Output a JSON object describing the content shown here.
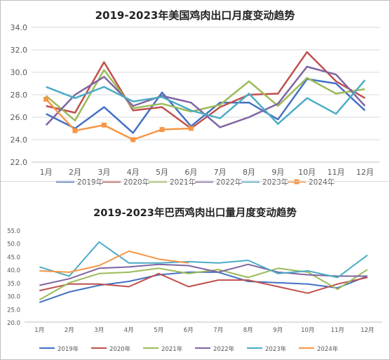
{
  "chart_data": [
    {
      "type": "line",
      "title": "2019-2023年美国鸡肉出口月度变动趋势",
      "categories": [
        "1月",
        "2月",
        "3月",
        "4月",
        "5月",
        "6月",
        "7月",
        "8月",
        "9月",
        "10月",
        "11月",
        "12月"
      ],
      "y_tick_labels": [
        "22.0",
        "24.0",
        "26.0",
        "28.0",
        "30.0",
        "32.0",
        "34.0"
      ],
      "ylim": [
        22,
        34
      ],
      "grid": true,
      "legend_position": "bottom",
      "series": [
        {
          "name": "2019年",
          "color": "#4472c4",
          "marker": "none",
          "values": [
            26.3,
            25.0,
            26.9,
            24.6,
            28.2,
            25.2,
            27.3,
            27.3,
            25.8,
            29.4,
            29.0,
            26.6
          ]
        },
        {
          "name": "2020年",
          "color": "#c0504d",
          "marker": "none",
          "values": [
            27.0,
            26.4,
            30.9,
            26.6,
            26.9,
            25.0,
            26.9,
            28.0,
            28.1,
            31.8,
            29.2,
            27.7
          ]
        },
        {
          "name": "2021年",
          "color": "#9bbb59",
          "marker": "none",
          "values": [
            27.9,
            25.7,
            30.2,
            26.8,
            27.2,
            26.5,
            27.1,
            29.2,
            27.0,
            29.5,
            28.1,
            28.5
          ]
        },
        {
          "name": "2022年",
          "color": "#8064a2",
          "marker": "none",
          "values": [
            25.3,
            28.0,
            29.6,
            27.0,
            27.9,
            27.3,
            25.1,
            26.0,
            27.2,
            30.5,
            29.8,
            27.0
          ]
        },
        {
          "name": "2023年",
          "color": "#4bacc6",
          "marker": "none",
          "values": [
            28.7,
            27.7,
            28.7,
            27.4,
            27.8,
            26.6,
            25.9,
            28.1,
            25.4,
            27.7,
            26.3,
            29.3
          ]
        },
        {
          "name": "2024年",
          "color": "#f79646",
          "marker": "square",
          "values": [
            27.6,
            24.8,
            25.3,
            24.0,
            24.9,
            25.0,
            null,
            null,
            null,
            null,
            null,
            null
          ]
        }
      ]
    },
    {
      "type": "line",
      "title": "2019-2023年巴西鸡肉出口量月度变动趋势",
      "categories": [
        "1月",
        "2月",
        "3月",
        "4月",
        "5月",
        "6月",
        "7月",
        "8月",
        "9月",
        "10月",
        "11月",
        "12月"
      ],
      "y_tick_labels": [
        "20.0",
        "25.0",
        "30.0",
        "35.0",
        "40.0",
        "45.0",
        "50.0",
        "55.0"
      ],
      "ylim": [
        20,
        55
      ],
      "grid": false,
      "legend_position": "bottom",
      "series": [
        {
          "name": "2019年",
          "color": "#4472c4",
          "values": [
            27.5,
            31.5,
            34.0,
            35.5,
            38.0,
            39.0,
            39.0,
            35.5,
            35.0,
            34.5,
            33.0,
            37.5
          ]
        },
        {
          "name": "2020年",
          "color": "#c0504d",
          "values": [
            32.0,
            34.5,
            34.5,
            33.5,
            38.5,
            33.5,
            36.0,
            36.0,
            33.5,
            31.0,
            34.5,
            37.0
          ]
        },
        {
          "name": "2021年",
          "color": "#9bbb59",
          "values": [
            28.5,
            35.0,
            38.5,
            39.0,
            40.5,
            38.5,
            40.0,
            37.0,
            40.5,
            39.0,
            32.5,
            40.0
          ]
        },
        {
          "name": "2022年",
          "color": "#8064a2",
          "values": [
            34.0,
            36.5,
            40.5,
            41.0,
            42.0,
            41.5,
            39.0,
            42.0,
            39.0,
            38.0,
            37.5,
            37.5
          ]
        },
        {
          "name": "2023年",
          "color": "#4bacc6",
          "values": [
            41.0,
            37.5,
            50.5,
            42.5,
            42.5,
            43.0,
            42.5,
            43.5,
            38.5,
            39.5,
            37.0,
            45.5
          ]
        },
        {
          "name": "2024年",
          "color": "#f79646",
          "values": [
            39.5,
            39.0,
            41.5,
            47.0,
            44.0,
            42.5,
            null,
            null,
            null,
            null,
            null,
            null
          ]
        }
      ]
    }
  ]
}
